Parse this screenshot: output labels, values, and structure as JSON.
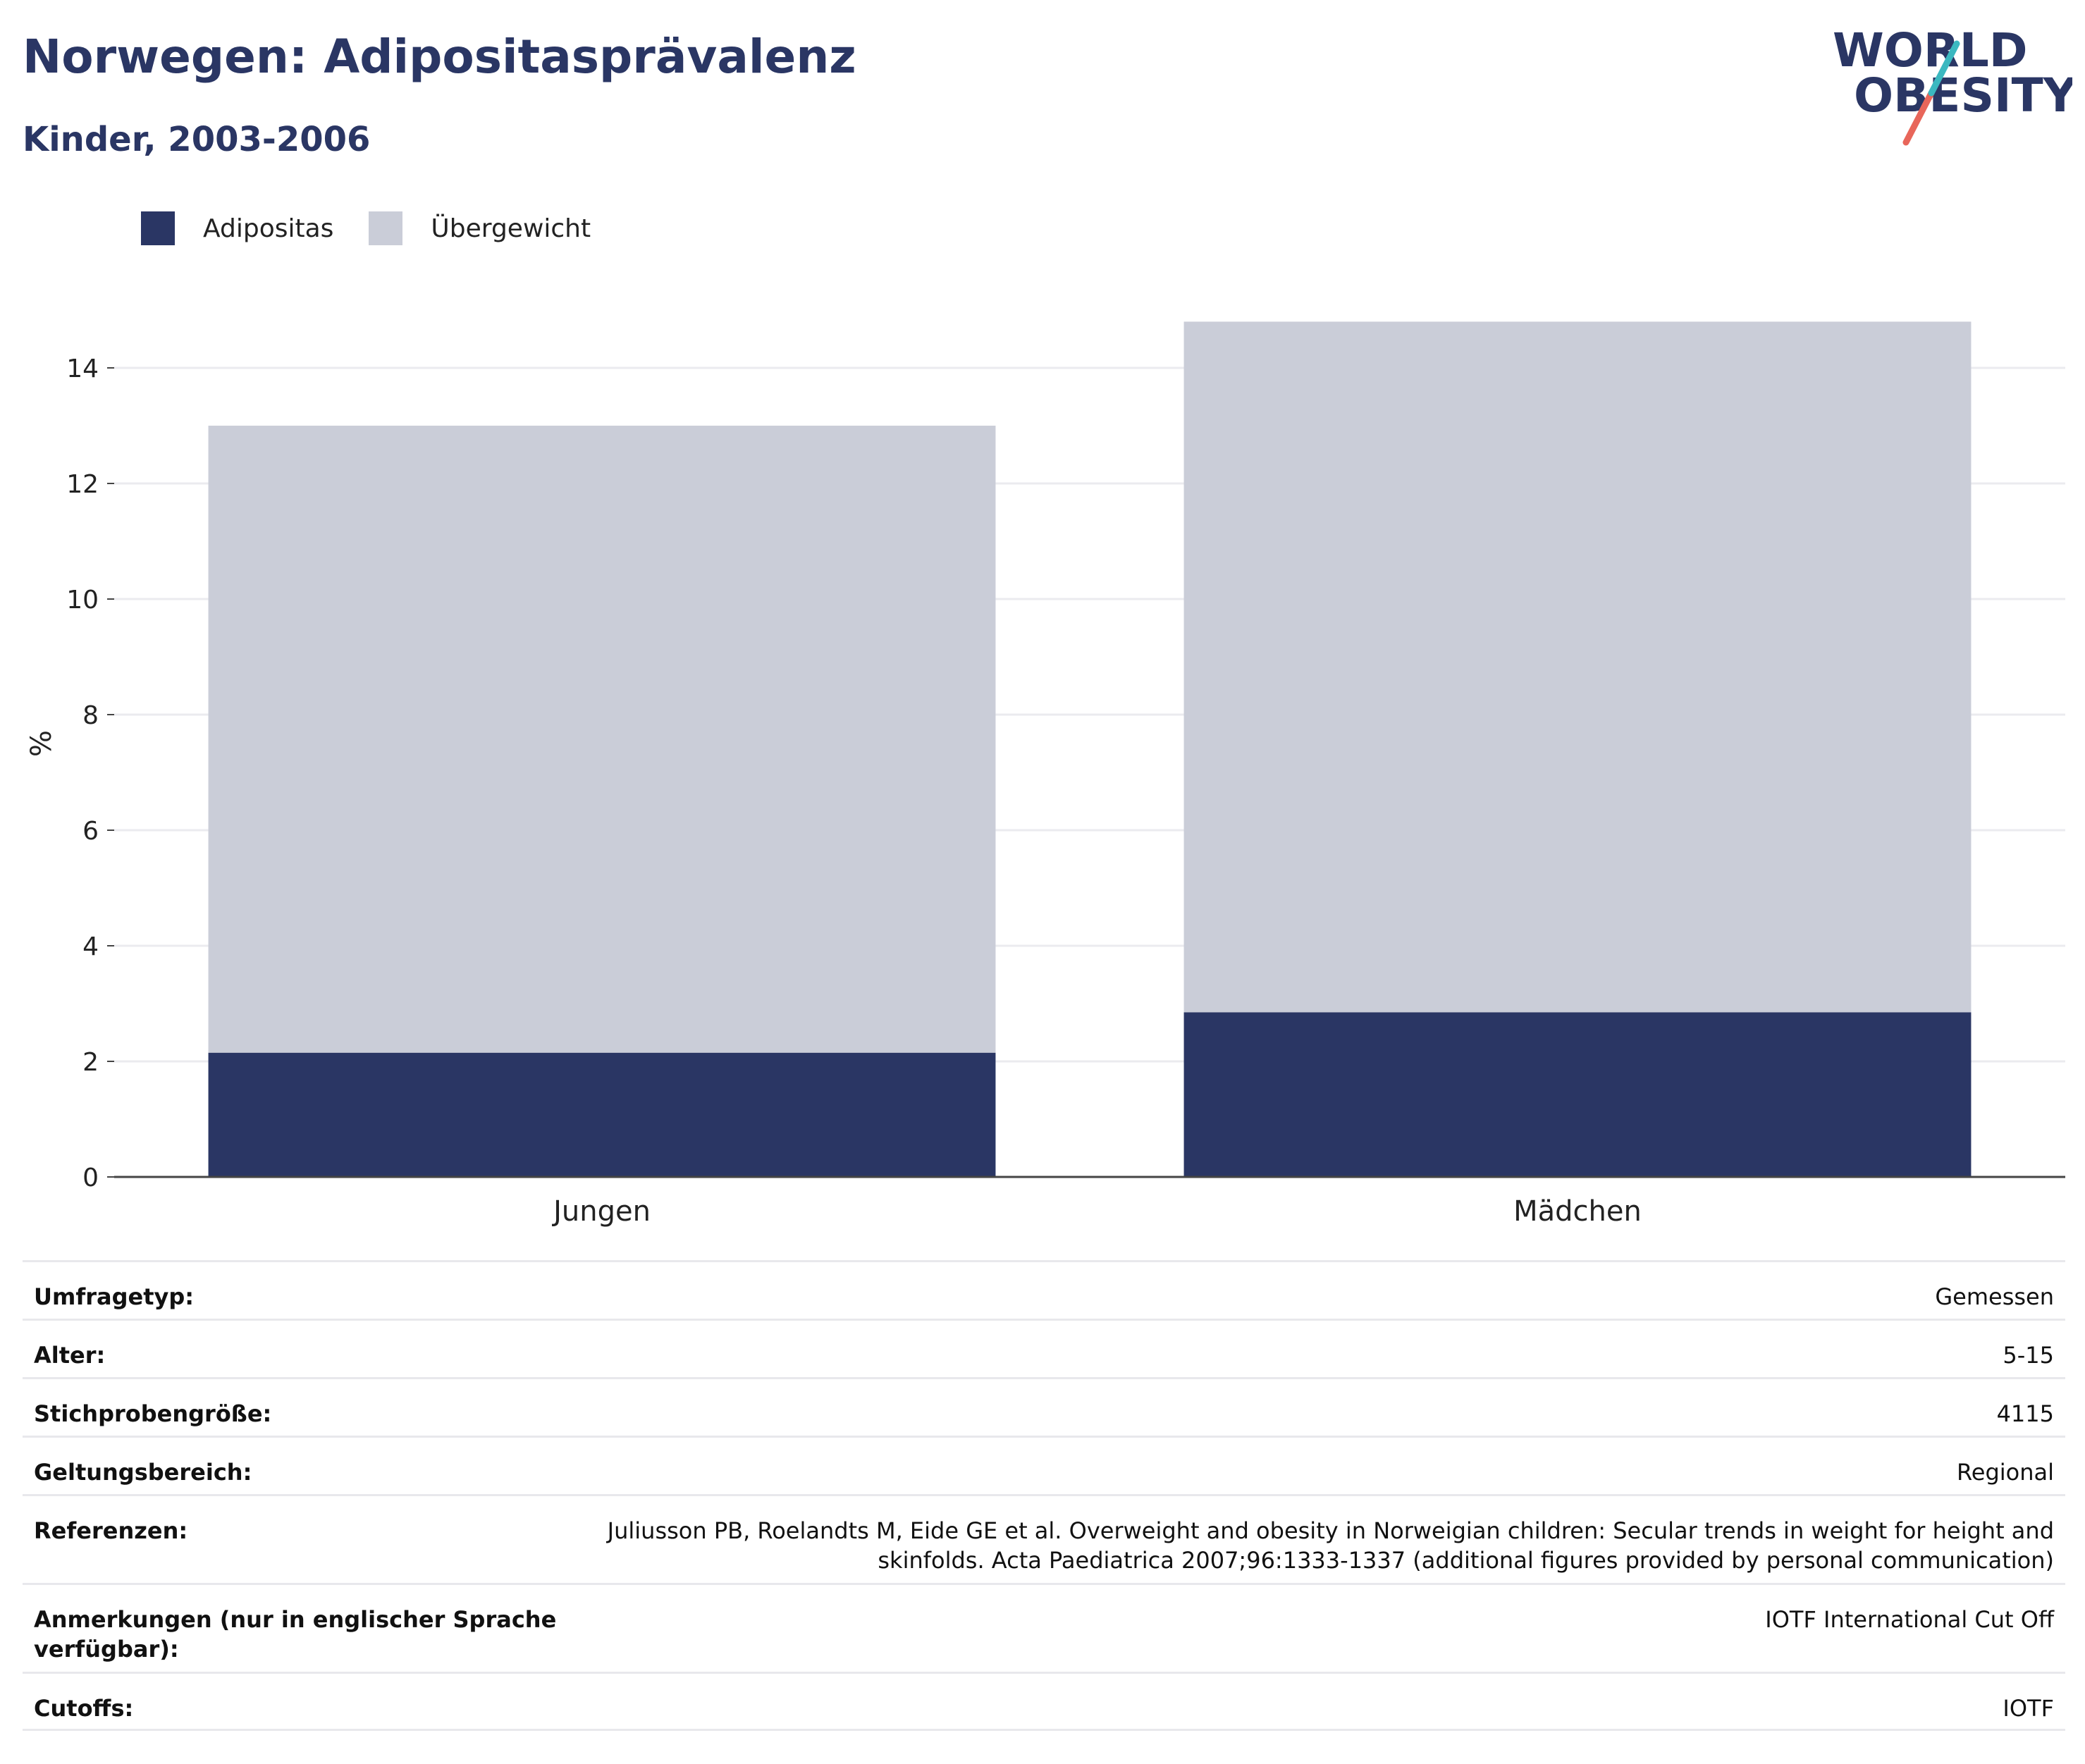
{
  "header": {
    "title": "Norwegen: Adipositasprävalenz",
    "subtitle": "Kinder, 2003-2006"
  },
  "logo": {
    "line1": "WORLD",
    "line2": "OBESITY"
  },
  "legend": [
    {
      "label": "Adipositas",
      "color": "#2a3664"
    },
    {
      "label": "Übergewicht",
      "color": "#cacdd8"
    }
  ],
  "chart_data": {
    "type": "bar",
    "stacked": true,
    "categories": [
      "Jungen",
      "Mädchen"
    ],
    "series": [
      {
        "name": "Adipositas",
        "color": "#2a3664",
        "values": [
          2.15,
          2.85
        ]
      },
      {
        "name": "Übergewicht",
        "color": "#cacdd8",
        "values": [
          10.85,
          11.95
        ]
      }
    ],
    "ylabel": "%",
    "ylim": [
      0,
      15
    ],
    "yticks": [
      0,
      2,
      4,
      6,
      8,
      10,
      12,
      14
    ],
    "grid": true,
    "legend_position": "top-left"
  },
  "info": [
    {
      "label": "Umfragetyp:",
      "value": "Gemessen"
    },
    {
      "label": "Alter:",
      "value": "5-15"
    },
    {
      "label": "Stichprobengröße:",
      "value": "4115"
    },
    {
      "label": "Geltungsbereich:",
      "value": "Regional"
    },
    {
      "label": "Referenzen:",
      "value_line1": "Juliusson PB, Roelandts M, Eide GE et al. Overweight and obesity in Norweigian children: Secular trends in weight for height and",
      "value_line2": "skinfolds. Acta Paediatrica 2007;96:1333-1337 (additional figures provided by personal communication)"
    },
    {
      "label_line1": "Anmerkungen (nur in englischer Sprache",
      "label_line2": "verfügbar):",
      "value": "IOTF International Cut Off"
    },
    {
      "label": "Cutoffs:",
      "value": "IOTF"
    }
  ]
}
